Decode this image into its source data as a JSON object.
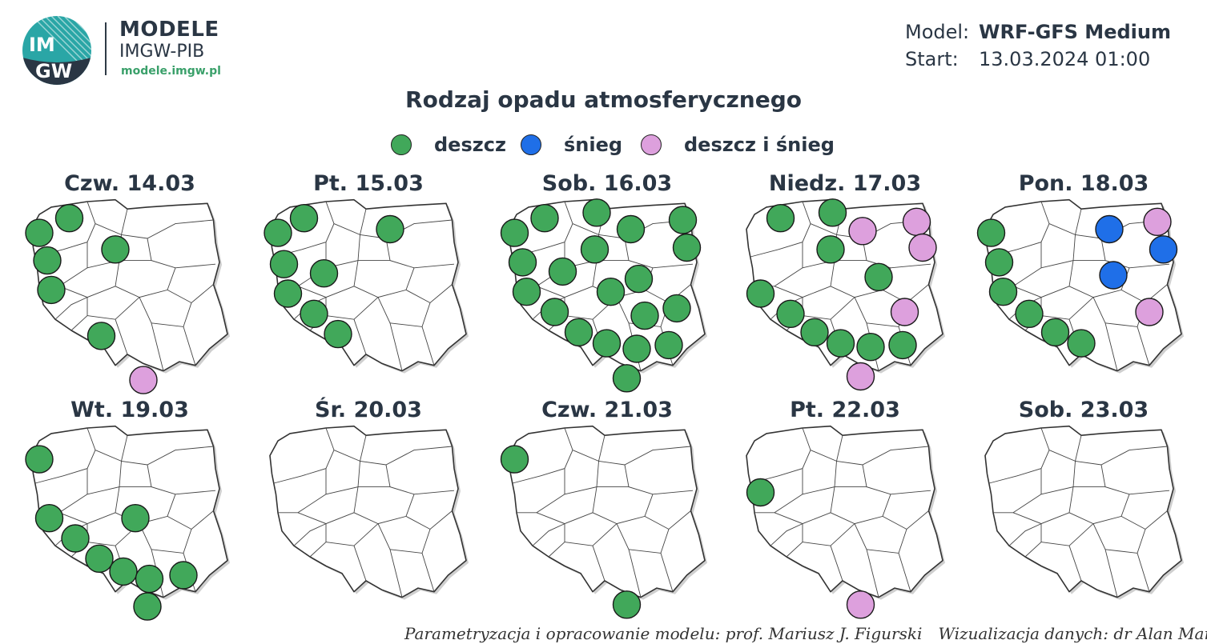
{
  "logo": {
    "monogram_top": "IM",
    "monogram_bottom": "GW",
    "brand_line1": "MODELE",
    "brand_line2": "IMGW-PIB",
    "website": "modele.imgw.pl",
    "color_teal": "#2aa6a6",
    "color_green": "#3aa06a"
  },
  "meta": {
    "model_label": "Model:",
    "model_value": "WRF-GFS Medium",
    "start_label": "Start:",
    "start_value": "13.03.2024 01:00"
  },
  "title": "Rodzaj opadu atmosferycznego",
  "legend": [
    {
      "key": "rain",
      "label": "deszcz",
      "color": "#41a85a"
    },
    {
      "key": "snow",
      "label": "śnieg",
      "color": "#1f6fe8"
    },
    {
      "key": "mixed",
      "label": "deszcz i śnieg",
      "color": "#dda0dd"
    }
  ],
  "panels": [
    {
      "label": "Czw. 14.03",
      "markers": [
        {
          "t": "rain",
          "x": 0.21,
          "y": 0.09
        },
        {
          "t": "rain",
          "x": 0.06,
          "y": 0.17
        },
        {
          "t": "rain",
          "x": 0.44,
          "y": 0.26
        },
        {
          "t": "rain",
          "x": 0.1,
          "y": 0.32
        },
        {
          "t": "rain",
          "x": 0.12,
          "y": 0.48
        },
        {
          "t": "rain",
          "x": 0.37,
          "y": 0.73
        },
        {
          "t": "mixed",
          "x": 0.58,
          "y": 0.97
        }
      ]
    },
    {
      "label": "Pt. 15.03",
      "markers": [
        {
          "t": "rain",
          "x": 0.19,
          "y": 0.09
        },
        {
          "t": "rain",
          "x": 0.06,
          "y": 0.17
        },
        {
          "t": "rain",
          "x": 0.62,
          "y": 0.15
        },
        {
          "t": "rain",
          "x": 0.09,
          "y": 0.34
        },
        {
          "t": "rain",
          "x": 0.29,
          "y": 0.39
        },
        {
          "t": "rain",
          "x": 0.11,
          "y": 0.5
        },
        {
          "t": "rain",
          "x": 0.24,
          "y": 0.61
        },
        {
          "t": "rain",
          "x": 0.36,
          "y": 0.72
        }
      ]
    },
    {
      "label": "Sob. 16.03",
      "markers": [
        {
          "t": "rain",
          "x": 0.2,
          "y": 0.09
        },
        {
          "t": "rain",
          "x": 0.46,
          "y": 0.06
        },
        {
          "t": "rain",
          "x": 0.05,
          "y": 0.17
        },
        {
          "t": "rain",
          "x": 0.63,
          "y": 0.15
        },
        {
          "t": "rain",
          "x": 0.89,
          "y": 0.1
        },
        {
          "t": "rain",
          "x": 0.45,
          "y": 0.26
        },
        {
          "t": "rain",
          "x": 0.91,
          "y": 0.25
        },
        {
          "t": "rain",
          "x": 0.09,
          "y": 0.33
        },
        {
          "t": "rain",
          "x": 0.29,
          "y": 0.38
        },
        {
          "t": "rain",
          "x": 0.67,
          "y": 0.42
        },
        {
          "t": "rain",
          "x": 0.11,
          "y": 0.49
        },
        {
          "t": "rain",
          "x": 0.53,
          "y": 0.49
        },
        {
          "t": "rain",
          "x": 0.25,
          "y": 0.6
        },
        {
          "t": "rain",
          "x": 0.7,
          "y": 0.62
        },
        {
          "t": "rain",
          "x": 0.86,
          "y": 0.58
        },
        {
          "t": "rain",
          "x": 0.37,
          "y": 0.71
        },
        {
          "t": "rain",
          "x": 0.51,
          "y": 0.77
        },
        {
          "t": "rain",
          "x": 0.66,
          "y": 0.8
        },
        {
          "t": "rain",
          "x": 0.82,
          "y": 0.78
        },
        {
          "t": "rain",
          "x": 0.61,
          "y": 0.96
        }
      ]
    },
    {
      "label": "Niedz. 17.03",
      "markers": [
        {
          "t": "rain",
          "x": 0.19,
          "y": 0.09
        },
        {
          "t": "rain",
          "x": 0.45,
          "y": 0.06
        },
        {
          "t": "mixed",
          "x": 0.6,
          "y": 0.16
        },
        {
          "t": "mixed",
          "x": 0.87,
          "y": 0.11
        },
        {
          "t": "rain",
          "x": 0.44,
          "y": 0.26
        },
        {
          "t": "mixed",
          "x": 0.9,
          "y": 0.25
        },
        {
          "t": "rain",
          "x": 0.68,
          "y": 0.41
        },
        {
          "t": "rain",
          "x": 0.09,
          "y": 0.5
        },
        {
          "t": "rain",
          "x": 0.24,
          "y": 0.61
        },
        {
          "t": "mixed",
          "x": 0.81,
          "y": 0.6
        },
        {
          "t": "rain",
          "x": 0.36,
          "y": 0.71
        },
        {
          "t": "rain",
          "x": 0.49,
          "y": 0.77
        },
        {
          "t": "rain",
          "x": 0.64,
          "y": 0.79
        },
        {
          "t": "rain",
          "x": 0.8,
          "y": 0.78
        },
        {
          "t": "mixed",
          "x": 0.59,
          "y": 0.95
        }
      ]
    },
    {
      "label": "Pon. 18.03",
      "markers": [
        {
          "t": "snow",
          "x": 0.64,
          "y": 0.15
        },
        {
          "t": "mixed",
          "x": 0.88,
          "y": 0.11
        },
        {
          "t": "rain",
          "x": 0.05,
          "y": 0.17
        },
        {
          "t": "snow",
          "x": 0.91,
          "y": 0.26
        },
        {
          "t": "rain",
          "x": 0.09,
          "y": 0.33
        },
        {
          "t": "snow",
          "x": 0.66,
          "y": 0.4
        },
        {
          "t": "rain",
          "x": 0.11,
          "y": 0.49
        },
        {
          "t": "mixed",
          "x": 0.84,
          "y": 0.6
        },
        {
          "t": "rain",
          "x": 0.24,
          "y": 0.61
        },
        {
          "t": "rain",
          "x": 0.37,
          "y": 0.71
        },
        {
          "t": "rain",
          "x": 0.5,
          "y": 0.77
        }
      ]
    },
    {
      "label": "Wt. 19.03",
      "markers": [
        {
          "t": "rain",
          "x": 0.06,
          "y": 0.17
        },
        {
          "t": "rain",
          "x": 0.11,
          "y": 0.49
        },
        {
          "t": "rain",
          "x": 0.54,
          "y": 0.49
        },
        {
          "t": "rain",
          "x": 0.24,
          "y": 0.6
        },
        {
          "t": "rain",
          "x": 0.36,
          "y": 0.71
        },
        {
          "t": "rain",
          "x": 0.48,
          "y": 0.78
        },
        {
          "t": "rain",
          "x": 0.61,
          "y": 0.82
        },
        {
          "t": "rain",
          "x": 0.78,
          "y": 0.8
        },
        {
          "t": "rain",
          "x": 0.6,
          "y": 0.97
        }
      ]
    },
    {
      "label": "Śr. 20.03",
      "markers": []
    },
    {
      "label": "Czw. 21.03",
      "markers": [
        {
          "t": "rain",
          "x": 0.05,
          "y": 0.17
        },
        {
          "t": "rain",
          "x": 0.61,
          "y": 0.96
        }
      ]
    },
    {
      "label": "Pt. 22.03",
      "markers": [
        {
          "t": "rain",
          "x": 0.09,
          "y": 0.35
        },
        {
          "t": "mixed",
          "x": 0.59,
          "y": 0.96
        }
      ]
    },
    {
      "label": "Sob. 23.03",
      "markers": []
    }
  ],
  "credits": {
    "model": "Parametryzacja i opracowanie modelu: prof. Mariusz J. Figurski",
    "viz": "Wizualizacja danych: dr Alan Mandal"
  }
}
